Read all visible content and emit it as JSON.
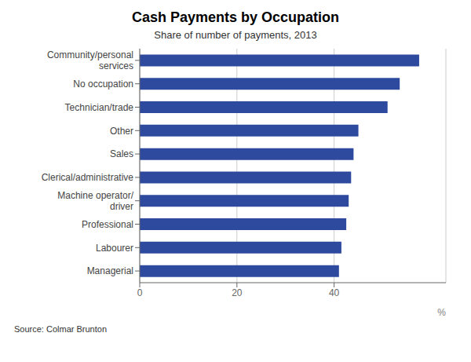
{
  "chart_data": {
    "type": "bar",
    "orientation": "horizontal",
    "title": "Cash Payments by Occupation",
    "subtitle": "Share of number of payments, 2013",
    "source": "Source: Colmar Brunton",
    "xlabel": "%",
    "categories": [
      "Managerial",
      "Labourer",
      "Professional",
      "Machine operator/\ndriver",
      "Clerical/administrative",
      "Sales",
      "Other",
      "Technician/trade",
      "No occupation",
      "Community/personal\nservices"
    ],
    "values": [
      41.0,
      41.5,
      42.5,
      43.0,
      43.5,
      44.0,
      45.0,
      51.0,
      53.5,
      57.5
    ],
    "color": "#2E4A9E",
    "xlim": [
      0,
      63
    ],
    "xticks": [
      0,
      20,
      40
    ],
    "grid": true
  }
}
